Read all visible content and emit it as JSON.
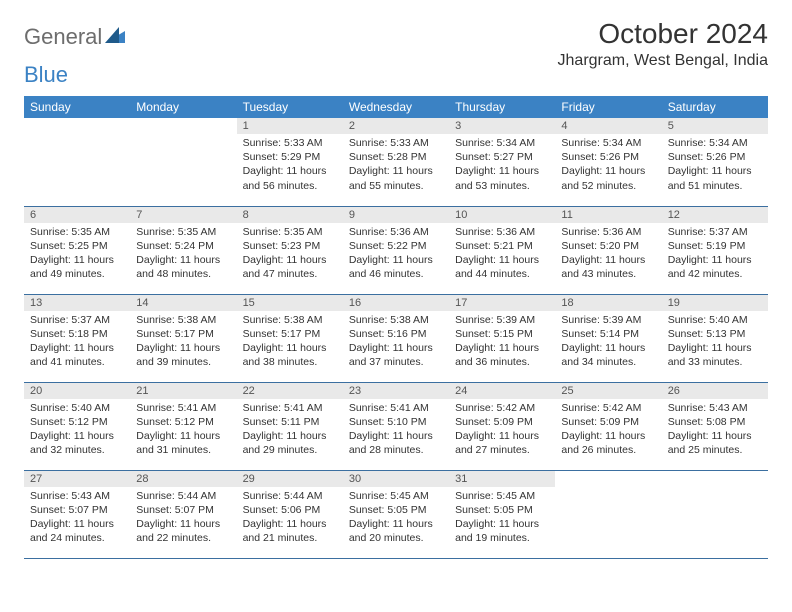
{
  "brand": {
    "part1": "General",
    "part2": "Blue"
  },
  "title": "October 2024",
  "location": "Jhargram, West Bengal, India",
  "header_bg": "#3b82c4",
  "daynum_bg": "#e9e9e9",
  "row_border": "#3b6fa0",
  "weekdays": [
    "Sunday",
    "Monday",
    "Tuesday",
    "Wednesday",
    "Thursday",
    "Friday",
    "Saturday"
  ],
  "weeks": [
    [
      null,
      null,
      {
        "n": "1",
        "sr": "Sunrise: 5:33 AM",
        "ss": "Sunset: 5:29 PM",
        "dl": "Daylight: 11 hours and 56 minutes."
      },
      {
        "n": "2",
        "sr": "Sunrise: 5:33 AM",
        "ss": "Sunset: 5:28 PM",
        "dl": "Daylight: 11 hours and 55 minutes."
      },
      {
        "n": "3",
        "sr": "Sunrise: 5:34 AM",
        "ss": "Sunset: 5:27 PM",
        "dl": "Daylight: 11 hours and 53 minutes."
      },
      {
        "n": "4",
        "sr": "Sunrise: 5:34 AM",
        "ss": "Sunset: 5:26 PM",
        "dl": "Daylight: 11 hours and 52 minutes."
      },
      {
        "n": "5",
        "sr": "Sunrise: 5:34 AM",
        "ss": "Sunset: 5:26 PM",
        "dl": "Daylight: 11 hours and 51 minutes."
      }
    ],
    [
      {
        "n": "6",
        "sr": "Sunrise: 5:35 AM",
        "ss": "Sunset: 5:25 PM",
        "dl": "Daylight: 11 hours and 49 minutes."
      },
      {
        "n": "7",
        "sr": "Sunrise: 5:35 AM",
        "ss": "Sunset: 5:24 PM",
        "dl": "Daylight: 11 hours and 48 minutes."
      },
      {
        "n": "8",
        "sr": "Sunrise: 5:35 AM",
        "ss": "Sunset: 5:23 PM",
        "dl": "Daylight: 11 hours and 47 minutes."
      },
      {
        "n": "9",
        "sr": "Sunrise: 5:36 AM",
        "ss": "Sunset: 5:22 PM",
        "dl": "Daylight: 11 hours and 46 minutes."
      },
      {
        "n": "10",
        "sr": "Sunrise: 5:36 AM",
        "ss": "Sunset: 5:21 PM",
        "dl": "Daylight: 11 hours and 44 minutes."
      },
      {
        "n": "11",
        "sr": "Sunrise: 5:36 AM",
        "ss": "Sunset: 5:20 PM",
        "dl": "Daylight: 11 hours and 43 minutes."
      },
      {
        "n": "12",
        "sr": "Sunrise: 5:37 AM",
        "ss": "Sunset: 5:19 PM",
        "dl": "Daylight: 11 hours and 42 minutes."
      }
    ],
    [
      {
        "n": "13",
        "sr": "Sunrise: 5:37 AM",
        "ss": "Sunset: 5:18 PM",
        "dl": "Daylight: 11 hours and 41 minutes."
      },
      {
        "n": "14",
        "sr": "Sunrise: 5:38 AM",
        "ss": "Sunset: 5:17 PM",
        "dl": "Daylight: 11 hours and 39 minutes."
      },
      {
        "n": "15",
        "sr": "Sunrise: 5:38 AM",
        "ss": "Sunset: 5:17 PM",
        "dl": "Daylight: 11 hours and 38 minutes."
      },
      {
        "n": "16",
        "sr": "Sunrise: 5:38 AM",
        "ss": "Sunset: 5:16 PM",
        "dl": "Daylight: 11 hours and 37 minutes."
      },
      {
        "n": "17",
        "sr": "Sunrise: 5:39 AM",
        "ss": "Sunset: 5:15 PM",
        "dl": "Daylight: 11 hours and 36 minutes."
      },
      {
        "n": "18",
        "sr": "Sunrise: 5:39 AM",
        "ss": "Sunset: 5:14 PM",
        "dl": "Daylight: 11 hours and 34 minutes."
      },
      {
        "n": "19",
        "sr": "Sunrise: 5:40 AM",
        "ss": "Sunset: 5:13 PM",
        "dl": "Daylight: 11 hours and 33 minutes."
      }
    ],
    [
      {
        "n": "20",
        "sr": "Sunrise: 5:40 AM",
        "ss": "Sunset: 5:12 PM",
        "dl": "Daylight: 11 hours and 32 minutes."
      },
      {
        "n": "21",
        "sr": "Sunrise: 5:41 AM",
        "ss": "Sunset: 5:12 PM",
        "dl": "Daylight: 11 hours and 31 minutes."
      },
      {
        "n": "22",
        "sr": "Sunrise: 5:41 AM",
        "ss": "Sunset: 5:11 PM",
        "dl": "Daylight: 11 hours and 29 minutes."
      },
      {
        "n": "23",
        "sr": "Sunrise: 5:41 AM",
        "ss": "Sunset: 5:10 PM",
        "dl": "Daylight: 11 hours and 28 minutes."
      },
      {
        "n": "24",
        "sr": "Sunrise: 5:42 AM",
        "ss": "Sunset: 5:09 PM",
        "dl": "Daylight: 11 hours and 27 minutes."
      },
      {
        "n": "25",
        "sr": "Sunrise: 5:42 AM",
        "ss": "Sunset: 5:09 PM",
        "dl": "Daylight: 11 hours and 26 minutes."
      },
      {
        "n": "26",
        "sr": "Sunrise: 5:43 AM",
        "ss": "Sunset: 5:08 PM",
        "dl": "Daylight: 11 hours and 25 minutes."
      }
    ],
    [
      {
        "n": "27",
        "sr": "Sunrise: 5:43 AM",
        "ss": "Sunset: 5:07 PM",
        "dl": "Daylight: 11 hours and 24 minutes."
      },
      {
        "n": "28",
        "sr": "Sunrise: 5:44 AM",
        "ss": "Sunset: 5:07 PM",
        "dl": "Daylight: 11 hours and 22 minutes."
      },
      {
        "n": "29",
        "sr": "Sunrise: 5:44 AM",
        "ss": "Sunset: 5:06 PM",
        "dl": "Daylight: 11 hours and 21 minutes."
      },
      {
        "n": "30",
        "sr": "Sunrise: 5:45 AM",
        "ss": "Sunset: 5:05 PM",
        "dl": "Daylight: 11 hours and 20 minutes."
      },
      {
        "n": "31",
        "sr": "Sunrise: 5:45 AM",
        "ss": "Sunset: 5:05 PM",
        "dl": "Daylight: 11 hours and 19 minutes."
      },
      null,
      null
    ]
  ]
}
